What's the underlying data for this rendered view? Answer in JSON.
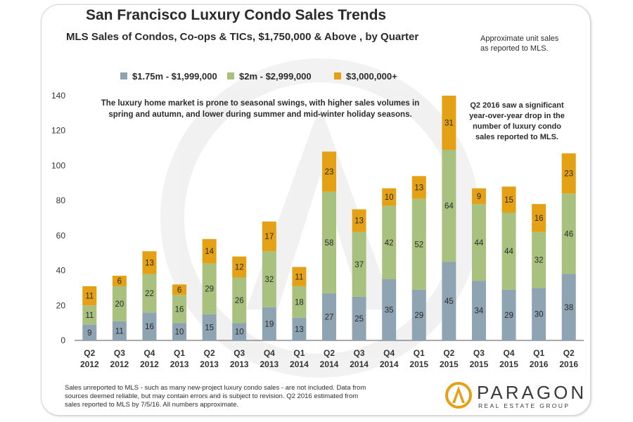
{
  "header": {
    "title": "San Francisco Luxury Condo Sales Trends",
    "subtitle": "MLS Sales of Condos, Co-ops & TICs, $1,750,000 & Above , by Quarter",
    "unit_note_line1": "Approximate unit sales",
    "unit_note_line2": "as reported to MLS."
  },
  "annotations": {
    "seasonal": [
      "The luxury home market is prone to seasonal swings, with higher sales volumes in",
      "spring and autumn, and lower during summer and mid-winter holiday seasons."
    ],
    "q2_2016": [
      "Q2 2016 saw a significant",
      "year-over-year drop in the",
      "number of luxury condo",
      "sales reported to MLS."
    ]
  },
  "footnote": [
    "Sales unreported to MLS - such as many new-project luxury condo sales - are not included. Data from",
    "sources deemed reliable, but may contain errors and is subject to revision.  Q2 2016 estimated from",
    "sales reported to MLS by 7/5/16. All numbers approximate."
  ],
  "logo": {
    "name": "PARAGON",
    "tagline": "REAL ESTATE GROUP",
    "icon": "paragon-logo-icon"
  },
  "colors": {
    "s1": "#8ea4b3",
    "s2": "#a9c17e",
    "s3": "#e5a115",
    "logo": "#e5a115"
  },
  "chart_data": {
    "type": "bar",
    "stacked": true,
    "categories": [
      [
        "Q2",
        "2012"
      ],
      [
        "Q3",
        "2012"
      ],
      [
        "Q4",
        "2012"
      ],
      [
        "Q1",
        "2013"
      ],
      [
        "Q2",
        "2013"
      ],
      [
        "Q3",
        "2013"
      ],
      [
        "Q4",
        "2013"
      ],
      [
        "Q1",
        "2014"
      ],
      [
        "Q2",
        "2014"
      ],
      [
        "Q3",
        "2014"
      ],
      [
        "Q4",
        "2014"
      ],
      [
        "Q1",
        "2015"
      ],
      [
        "Q2",
        "2015"
      ],
      [
        "Q3",
        "2015"
      ],
      [
        "Q4",
        "2015"
      ],
      [
        "Q1",
        "2016"
      ],
      [
        "Q2",
        "2016"
      ]
    ],
    "series": [
      {
        "name": "$1.75m - $1,999,000",
        "color": "#8ea4b3",
        "values": [
          9,
          11,
          16,
          10,
          15,
          10,
          19,
          13,
          27,
          25,
          35,
          29,
          45,
          34,
          29,
          30,
          38
        ]
      },
      {
        "name": "$2m - $2,999,000",
        "color": "#a9c17e",
        "values": [
          11,
          20,
          22,
          16,
          29,
          26,
          32,
          18,
          58,
          37,
          42,
          52,
          64,
          44,
          44,
          32,
          46
        ]
      },
      {
        "name": "$3,000,000+",
        "color": "#e5a115",
        "values": [
          11,
          6,
          13,
          6,
          14,
          12,
          17,
          11,
          23,
          13,
          10,
          13,
          31,
          9,
          15,
          16,
          23
        ]
      }
    ],
    "ylim": [
      0,
      140
    ],
    "yticks": [
      0,
      20,
      40,
      60,
      80,
      100,
      120,
      140
    ],
    "legend": "top",
    "grid": false
  }
}
